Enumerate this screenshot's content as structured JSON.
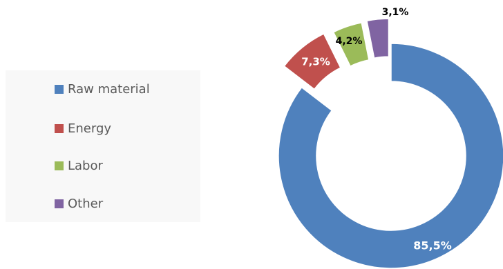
{
  "chart_data": {
    "type": "pie",
    "donut": true,
    "exploded": true,
    "categories": [
      "Raw material",
      "Energy",
      "Labor",
      "Other"
    ],
    "values": [
      85.5,
      7.3,
      4.2,
      3.1
    ],
    "data_labels": [
      "85,5%",
      "7,3%",
      "4,2%",
      "3,1%"
    ],
    "colors": [
      "#4f81bd",
      "#c0504d",
      "#9bbb59",
      "#8064a2"
    ],
    "title": "",
    "legend_position": "left",
    "grid": false
  },
  "legend": {
    "items": [
      {
        "label": "Raw material",
        "color": "#4f81bd"
      },
      {
        "label": "Energy",
        "color": "#c0504d"
      },
      {
        "label": "Labor",
        "color": "#9bbb59"
      },
      {
        "label": "Other",
        "color": "#8064a2"
      }
    ]
  }
}
